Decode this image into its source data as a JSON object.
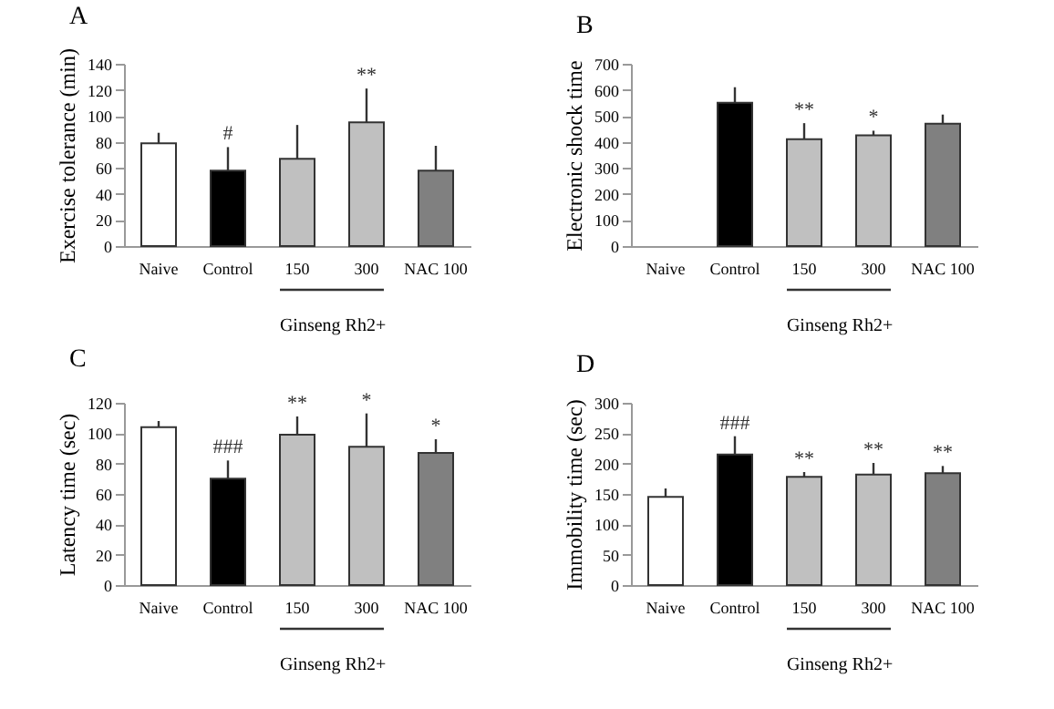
{
  "chart_data": [
    {
      "type": "bar",
      "title": "A",
      "ylabel": "Exercise tolerance (min)",
      "xlabel": "Ginseng Rh2+",
      "categories": [
        "Naive",
        "Control",
        "150",
        "300",
        "NAC 100"
      ],
      "values": [
        79,
        58,
        67,
        95,
        58
      ],
      "colors": [
        "#ffffff",
        "#000000",
        "#c0c0c0",
        "#c0c0c0",
        "#808080"
      ],
      "errors": [
        [
          79,
          87
        ],
        [
          58,
          76
        ],
        [
          67,
          93
        ],
        [
          95,
          121
        ],
        [
          58,
          77
        ]
      ],
      "ylim": [
        0,
        140
      ],
      "yticks": [
        0,
        20,
        40,
        60,
        80,
        100,
        120,
        140
      ],
      "grid": false,
      "annotations": [
        {
          "text": "#",
          "x": "Control",
          "y": 76
        },
        {
          "text": "**",
          "x": "300",
          "y": 121
        }
      ]
    },
    {
      "type": "bar",
      "title": "B",
      "ylabel": "Electronic shock time",
      "xlabel": "Ginseng Rh2+",
      "categories": [
        "Naive",
        "Control",
        "150",
        "300",
        "NAC 100"
      ],
      "values": [
        null,
        550,
        410,
        425,
        470
      ],
      "colors": [
        "#ffffff",
        "#000000",
        "#c0c0c0",
        "#c0c0c0",
        "#808080"
      ],
      "errors": [
        null,
        [
          550,
          610
        ],
        [
          410,
          472
        ],
        [
          425,
          443
        ],
        [
          470,
          505
        ]
      ],
      "ylim": [
        0,
        700
      ],
      "yticks": [
        0,
        100,
        200,
        300,
        400,
        500,
        600,
        700
      ],
      "grid": false,
      "annotations": [
        {
          "text": "**",
          "x": "150",
          "y": 472
        },
        {
          "text": "*",
          "x": "300",
          "y": 443
        }
      ]
    },
    {
      "type": "bar",
      "title": "C",
      "ylabel": "Latency time (sec)",
      "xlabel": "Ginseng Rh2+",
      "categories": [
        "Naive",
        "Control",
        "150",
        "300",
        "NAC 100"
      ],
      "values": [
        104,
        70,
        99,
        91,
        87
      ],
      "colors": [
        "#ffffff",
        "#000000",
        "#c0c0c0",
        "#c0c0c0",
        "#808080"
      ],
      "errors": [
        [
          104,
          108
        ],
        [
          70,
          82
        ],
        [
          99,
          111
        ],
        [
          91,
          113
        ],
        [
          87,
          96
        ]
      ],
      "ylim": [
        0,
        120
      ],
      "yticks": [
        0,
        20,
        40,
        60,
        80,
        100,
        120
      ],
      "grid": false,
      "annotations": [
        {
          "text": "###",
          "x": "Control",
          "y": 82
        },
        {
          "text": "**",
          "x": "150",
          "y": 111
        },
        {
          "text": "*",
          "x": "300",
          "y": 113
        },
        {
          "text": "*",
          "x": "NAC 100",
          "y": 96
        }
      ]
    },
    {
      "type": "bar",
      "title": "D",
      "ylabel": "Immobility time (sec)",
      "xlabel": "Ginseng Rh2+",
      "categories": [
        "Naive",
        "Control",
        "150",
        "300",
        "NAC 100"
      ],
      "values": [
        145,
        215,
        178,
        182,
        184
      ],
      "colors": [
        "#ffffff",
        "#000000",
        "#c0c0c0",
        "#c0c0c0",
        "#808080"
      ],
      "errors": [
        [
          145,
          159
        ],
        [
          215,
          245
        ],
        [
          178,
          186
        ],
        [
          182,
          201
        ],
        [
          184,
          196
        ]
      ],
      "ylim": [
        0,
        300
      ],
      "yticks": [
        0,
        50,
        100,
        150,
        200,
        250,
        300
      ],
      "grid": false,
      "annotations": [
        {
          "text": "###",
          "x": "Control",
          "y": 245
        },
        {
          "text": "**",
          "x": "150",
          "y": 186
        },
        {
          "text": "**",
          "x": "300",
          "y": 201
        },
        {
          "text": "**",
          "x": "NAC 100",
          "y": 196
        }
      ]
    }
  ]
}
